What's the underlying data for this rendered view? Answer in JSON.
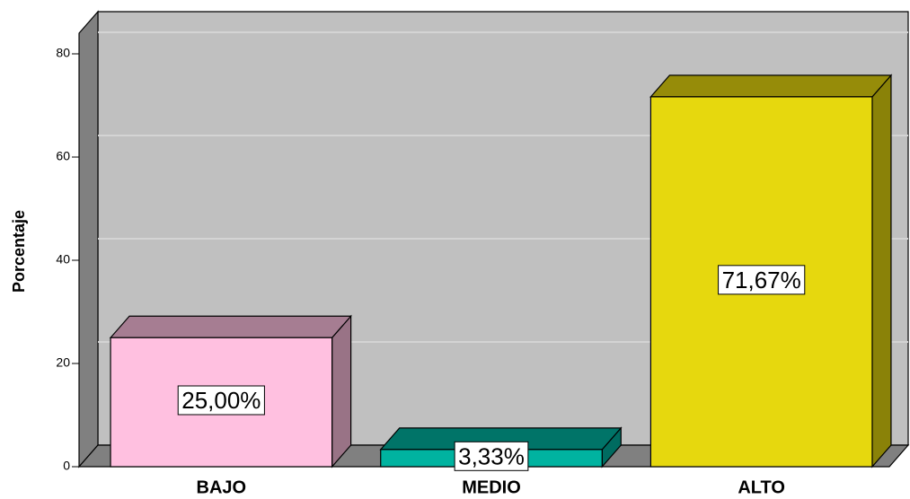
{
  "chart_data": {
    "type": "bar3d",
    "y_label": "Porcentaje",
    "categories": [
      "BAJO",
      "MEDIO",
      "ALTO"
    ],
    "values": [
      25,
      3.33,
      71.67
    ],
    "value_labels": [
      "25,00%",
      "3,33%",
      "71,67%"
    ],
    "colors": [
      "#ffc0e0",
      "#00b3a0",
      "#e6d80e"
    ],
    "ylim": [
      0,
      84
    ],
    "yticks": [
      0,
      20,
      40,
      60,
      80
    ],
    "grid": true
  }
}
